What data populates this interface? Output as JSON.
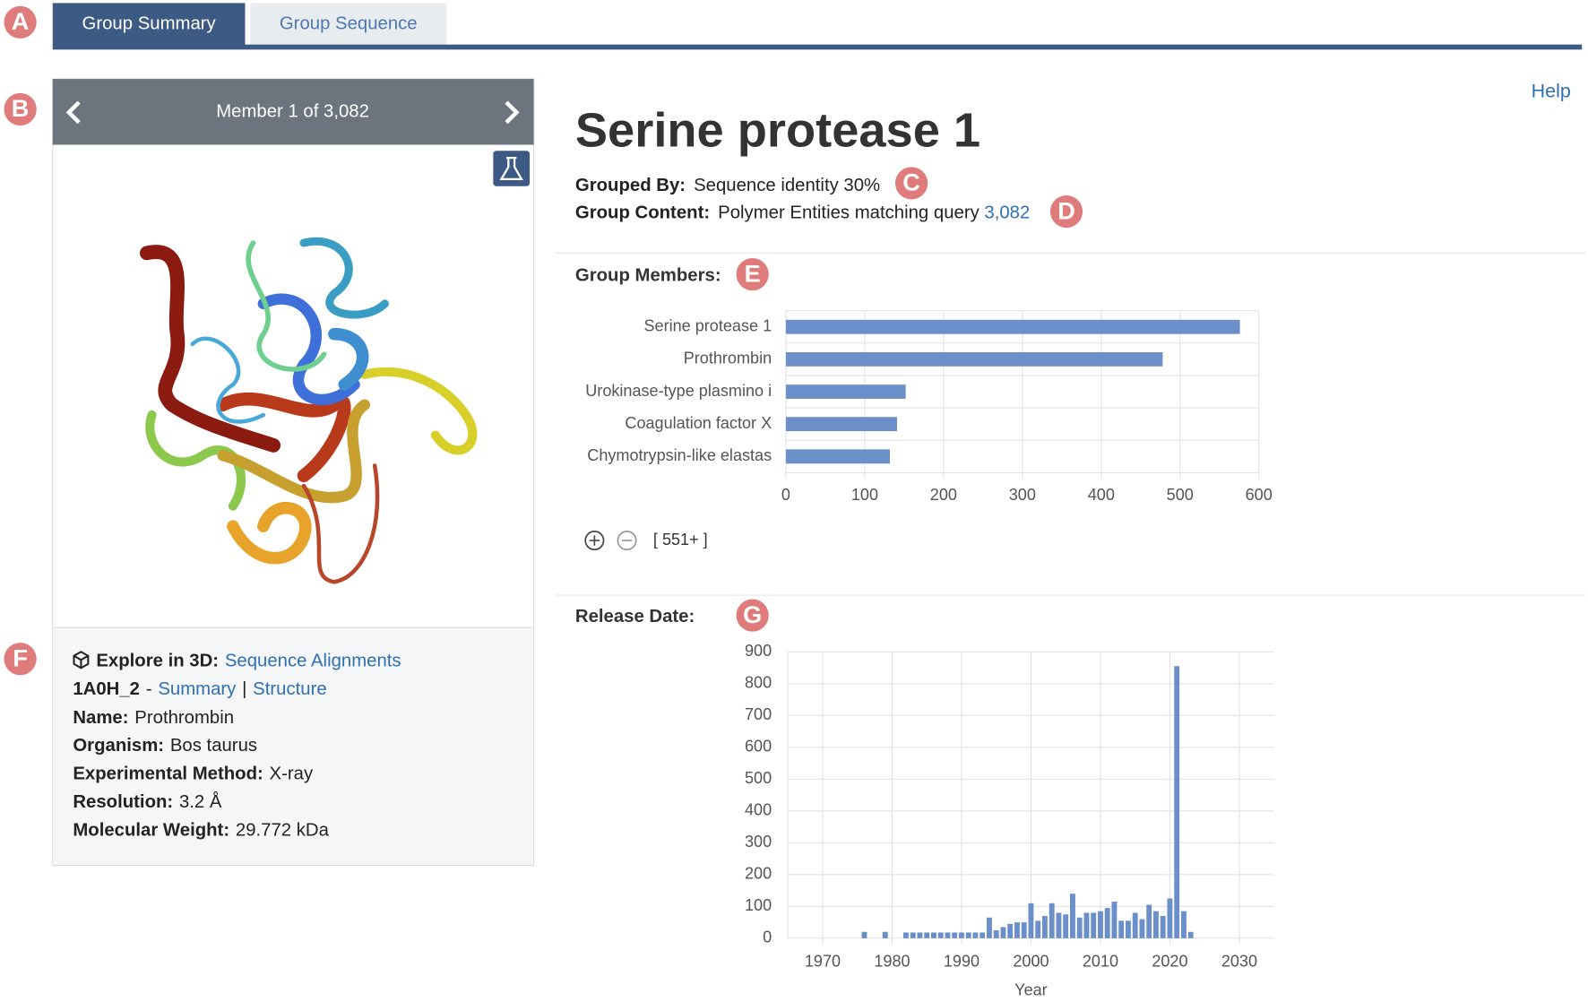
{
  "tabs": [
    "Group Summary",
    "Group Sequence"
  ],
  "annotations": [
    "A",
    "B",
    "C",
    "D",
    "E",
    "F",
    "G"
  ],
  "member_nav": {
    "label": "Member 1 of 3,082"
  },
  "info": {
    "explore_label": "Explore in 3D:",
    "explore_link": "Sequence Alignments",
    "entity_id": "1A0H_2",
    "entity_separator": "-",
    "links": [
      "Summary",
      "Structure"
    ],
    "link_separator": "|",
    "fields": [
      {
        "label": "Name:",
        "value": "Prothrombin"
      },
      {
        "label": "Organism:",
        "value": "Bos taurus"
      },
      {
        "label": "Experimental Method:",
        "value": "X-ray"
      },
      {
        "label": "Resolution:",
        "value": "3.2 Å"
      },
      {
        "label": "Molecular Weight:",
        "value": "29.772 kDa"
      }
    ]
  },
  "header": {
    "help": "Help",
    "title": "Serine protease 1",
    "grouped_by_label": "Grouped By:",
    "grouped_by_value": "Sequence identity 30%",
    "group_content_label": "Group Content:",
    "group_content_value": "Polymer Entities matching query",
    "group_content_link": "3,082"
  },
  "sections": {
    "group_members": "Group Members:",
    "release_date": "Release Date:"
  },
  "zoom_label": "[ 551+ ]",
  "chart_data": [
    {
      "type": "bar",
      "orientation": "horizontal",
      "categories": [
        "Serine protease 1",
        "Prothrombin",
        "Urokinase-type plasmino i",
        "Coagulation factor X",
        "Chymotrypsin-like elastas"
      ],
      "values": [
        576,
        478,
        152,
        141,
        132
      ],
      "color": "#6b8fc9",
      "xlim": [
        0,
        600
      ],
      "xticks": [
        0,
        100,
        200,
        300,
        400,
        500,
        600
      ],
      "grid": true
    },
    {
      "type": "bar",
      "orientation": "vertical",
      "x_label": "Year",
      "x": [
        1976,
        1979,
        1982,
        1983,
        1984,
        1985,
        1986,
        1987,
        1988,
        1989,
        1990,
        1991,
        1992,
        1993,
        1994,
        1995,
        1996,
        1997,
        1998,
        1999,
        2000,
        2001,
        2002,
        2003,
        2004,
        2005,
        2006,
        2007,
        2008,
        2009,
        2010,
        2011,
        2012,
        2013,
        2014,
        2015,
        2016,
        2017,
        2018,
        2019,
        2020,
        2021,
        2022,
        2023
      ],
      "values": [
        20,
        20,
        18,
        18,
        18,
        18,
        18,
        18,
        18,
        18,
        18,
        18,
        18,
        18,
        65,
        25,
        35,
        45,
        50,
        50,
        110,
        55,
        70,
        110,
        80,
        75,
        140,
        65,
        80,
        80,
        85,
        95,
        115,
        55,
        55,
        80,
        60,
        105,
        85,
        70,
        125,
        855,
        85,
        20
      ],
      "color": "#6b8fc9",
      "xlim": [
        1965,
        2035
      ],
      "xticks": [
        1970,
        1980,
        1990,
        2000,
        2010,
        2020,
        2030
      ],
      "ylim": [
        0,
        900
      ],
      "yticks": [
        0,
        100,
        200,
        300,
        400,
        500,
        600,
        700,
        800,
        900
      ],
      "grid": true
    }
  ]
}
